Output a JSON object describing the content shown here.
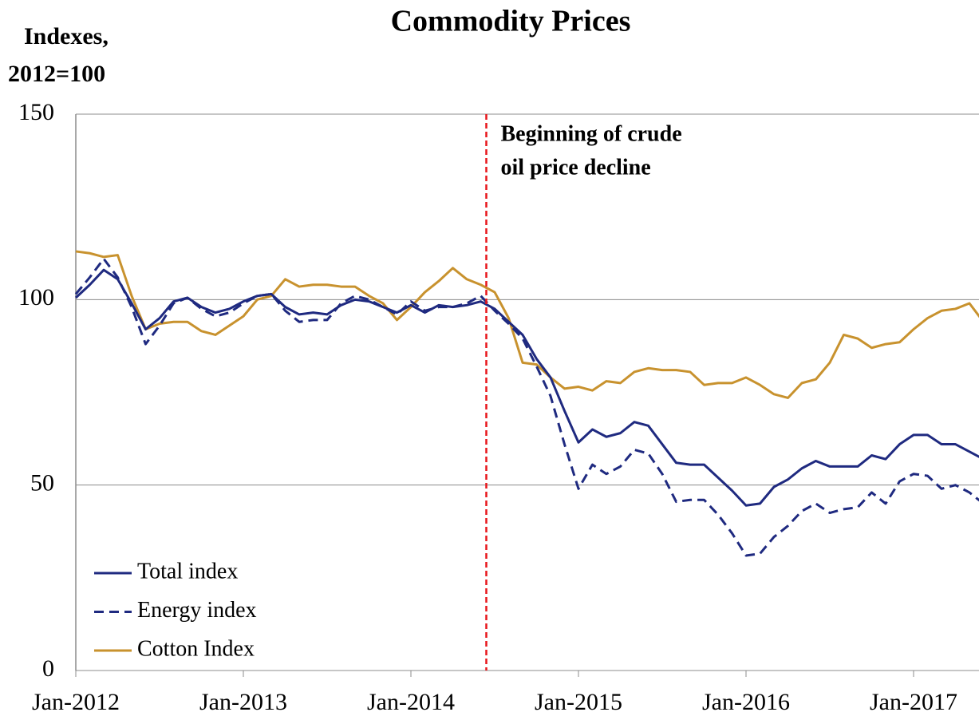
{
  "chart_data": {
    "type": "line",
    "title": "Commodity Prices",
    "y_label": [
      "Indexes,",
      "2012=100"
    ],
    "categories": [
      "Jan-2012",
      null,
      null,
      null,
      null,
      null,
      null,
      null,
      null,
      null,
      null,
      null,
      "Jan-2013",
      null,
      null,
      null,
      null,
      null,
      null,
      null,
      null,
      null,
      null,
      null,
      "Jan-2014",
      null,
      null,
      null,
      null,
      null,
      null,
      null,
      null,
      null,
      null,
      null,
      "Jan-2015",
      null,
      null,
      null,
      null,
      null,
      null,
      null,
      null,
      null,
      null,
      null,
      "Jan-2016",
      null,
      null,
      null,
      null,
      null,
      null,
      null,
      null,
      null,
      null,
      null,
      "Jan-2017",
      null,
      null,
      null,
      null,
      null
    ],
    "series": [
      {
        "name": "Total index",
        "color": "#1f2a80",
        "dash": false,
        "values": [
          100.5,
          104,
          108,
          105.5,
          99,
          92,
          95,
          99.5,
          100.5,
          98,
          96.5,
          97.5,
          99.5,
          101,
          101.5,
          98,
          96,
          96.5,
          96,
          98.5,
          100,
          99.5,
          98,
          96.5,
          98.5,
          96.5,
          98.5,
          98,
          98.5,
          99.5,
          97.5,
          94,
          90.5,
          84,
          79,
          70,
          61.5,
          65,
          63,
          64,
          67,
          66,
          61,
          56,
          55.5,
          55.5,
          52,
          48.5,
          44.5,
          45,
          49.5,
          51.5,
          54.5,
          56.5,
          55,
          55,
          55,
          58,
          57,
          61,
          63.5,
          63.5,
          61,
          61,
          59,
          57
        ]
      },
      {
        "name": "Energy index",
        "color": "#1f2a80",
        "dash": true,
        "values": [
          101.5,
          106,
          111,
          106,
          98,
          88,
          93,
          99,
          100.5,
          97.5,
          95.5,
          96.5,
          99,
          101,
          101.5,
          97,
          94,
          94.5,
          94.5,
          99,
          101,
          100,
          98,
          96,
          99.5,
          97,
          98,
          98,
          99,
          101,
          97,
          93.5,
          89.5,
          82,
          74,
          61,
          49,
          55.5,
          53,
          55,
          59.5,
          58.5,
          53,
          45.5,
          46,
          46,
          42,
          37,
          31,
          31.5,
          36,
          39,
          43,
          45,
          42.5,
          43.5,
          44,
          48,
          45,
          51,
          53,
          52.5,
          49,
          50,
          48,
          45
        ]
      },
      {
        "name": "Cotton Index",
        "color": "#c8922e",
        "dash": false,
        "values": [
          113,
          112.5,
          111.5,
          112,
          101,
          92,
          93.5,
          94,
          94,
          91.5,
          90.5,
          93,
          95.5,
          100,
          101,
          105.5,
          103.5,
          104,
          104,
          103.5,
          103.5,
          101,
          99,
          94.5,
          98,
          102,
          105,
          108.5,
          105.5,
          104,
          102,
          95,
          83,
          82.5,
          79,
          76,
          76.5,
          75.5,
          78,
          77.5,
          80.5,
          81.5,
          81,
          81,
          80.5,
          77,
          77.5,
          77.5,
          79,
          77,
          74.5,
          73.5,
          77.5,
          78.5,
          83,
          90.5,
          89.5,
          87,
          88,
          88.5,
          92,
          95,
          97,
          97.5,
          99,
          94
        ]
      }
    ],
    "ylim": [
      0,
      150
    ],
    "yticks": [
      0,
      50,
      100,
      150
    ],
    "grid": true,
    "legend": "lower left",
    "annotation": {
      "lines": [
        "Beginning of crude",
        "oil price decline"
      ],
      "position": 29.4,
      "color": "#e8161b"
    }
  }
}
